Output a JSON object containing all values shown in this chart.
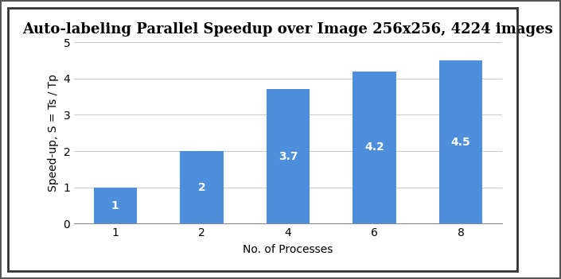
{
  "title": "Auto-labeling Parallel Speedup over Image 256x256, 4224 images",
  "xlabel": "No. of Processes",
  "ylabel": "Speed-up, S = Ts / Tp",
  "categories": [
    1,
    2,
    4,
    6,
    8
  ],
  "values": [
    1.0,
    2.0,
    3.7,
    4.2,
    4.5
  ],
  "bar_color": "#4d8fdb",
  "label_color": "#ffffff",
  "ylim": [
    0,
    5
  ],
  "yticks": [
    0,
    1,
    2,
    3,
    4,
    5
  ],
  "background_color": "#ffffff",
  "title_fontsize": 13,
  "label_fontsize": 10,
  "bar_label_fontsize": 10,
  "axis_label_fontsize": 10,
  "grid_color": "#cccccc",
  "bar_width": 0.5,
  "border_color": "#555555"
}
